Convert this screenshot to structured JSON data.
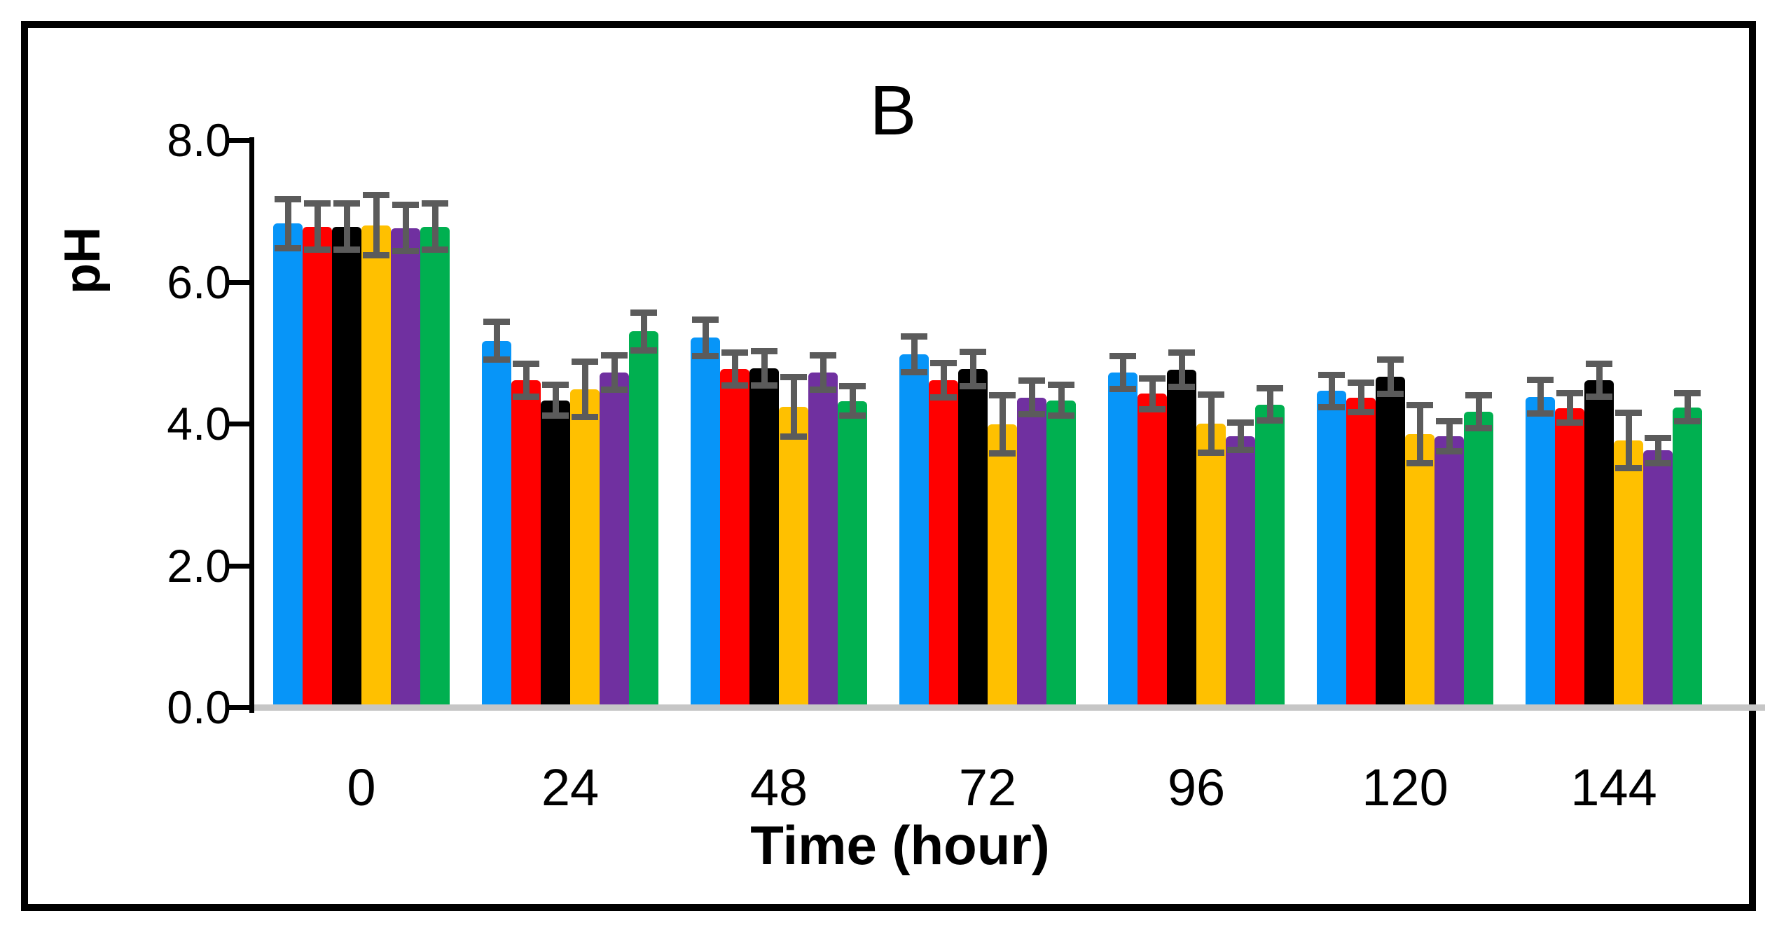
{
  "figure": {
    "panel_label": "B"
  },
  "chart_data": {
    "type": "bar",
    "title": "B",
    "xlabel": "Time (hour)",
    "ylabel": "pH",
    "ylim": [
      0.0,
      8.0
    ],
    "ytick_step": 2.0,
    "ytick_labels": [
      "0.0",
      "2.0",
      "4.0",
      "6.0",
      "8.0"
    ],
    "categories": [
      "0",
      "24",
      "48",
      "72",
      "96",
      "120",
      "144"
    ],
    "grid": false,
    "legend": "none",
    "error_bars": "symmetric",
    "error_bar_color": "#5B5B5B",
    "baseline_color": "#C6C6C6",
    "series": [
      {
        "name": "blue",
        "color": "#0795F8",
        "values": [
          6.82,
          5.17,
          5.21,
          4.98,
          4.72,
          4.46,
          4.38
        ],
        "errors": [
          0.35,
          0.27,
          0.26,
          0.25,
          0.23,
          0.23,
          0.24
        ]
      },
      {
        "name": "red",
        "color": "#FF0000",
        "values": [
          6.78,
          4.61,
          4.77,
          4.61,
          4.42,
          4.37,
          4.22
        ],
        "errors": [
          0.33,
          0.23,
          0.23,
          0.24,
          0.22,
          0.21,
          0.21
        ]
      },
      {
        "name": "black",
        "color": "#000000",
        "values": [
          6.78,
          4.33,
          4.78,
          4.77,
          4.76,
          4.66,
          4.61
        ],
        "errors": [
          0.33,
          0.22,
          0.24,
          0.24,
          0.24,
          0.24,
          0.23
        ]
      },
      {
        "name": "yellow",
        "color": "#FFC000",
        "values": [
          6.8,
          4.48,
          4.24,
          3.99,
          4.0,
          3.85,
          3.76
        ],
        "errors": [
          0.42,
          0.39,
          0.42,
          0.41,
          0.41,
          0.41,
          0.39
        ]
      },
      {
        "name": "purple",
        "color": "#7030A0",
        "values": [
          6.76,
          4.72,
          4.72,
          4.37,
          3.82,
          3.82,
          3.62
        ],
        "errors": [
          0.33,
          0.24,
          0.24,
          0.24,
          0.19,
          0.21,
          0.18
        ]
      },
      {
        "name": "green",
        "color": "#00B050",
        "values": [
          6.78,
          5.3,
          4.32,
          4.33,
          4.27,
          4.17,
          4.23
        ],
        "errors": [
          0.33,
          0.27,
          0.21,
          0.22,
          0.23,
          0.23,
          0.2
        ]
      }
    ]
  }
}
